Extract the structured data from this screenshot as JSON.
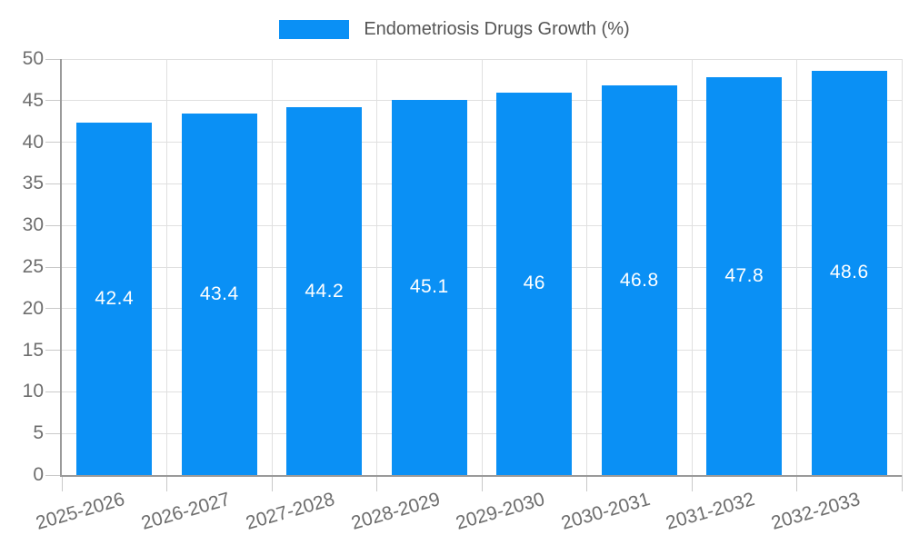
{
  "legend": {
    "label": "Endometriosis Drugs Growth (%)",
    "swatch_color": "#0a90f5"
  },
  "chart_data": {
    "type": "bar",
    "title": "Endometriosis Drugs Growth (%)",
    "categories": [
      "2025-2026",
      "2026-2027",
      "2027-2028",
      "2028-2029",
      "2029-2030",
      "2030-2031",
      "2031-2032",
      "2032-2033"
    ],
    "values": [
      42.4,
      43.4,
      44.2,
      45.1,
      46,
      46.8,
      47.8,
      48.6
    ],
    "data_labels": [
      "42.4",
      "43.4",
      "44.2",
      "45.1",
      "46",
      "46.8",
      "47.8",
      "48.6"
    ],
    "xlabel": "",
    "ylabel": "",
    "ylim": [
      0,
      50
    ],
    "ytick_step": 5,
    "ytick_labels": [
      "0",
      "5",
      "10",
      "15",
      "20",
      "25",
      "30",
      "35",
      "40",
      "45",
      "50"
    ],
    "grid": true,
    "legend_position": "top",
    "bar_color": "#0a90f5",
    "value_label_color": "#ffffff",
    "x_label_rotation_deg": -16
  },
  "colors": {
    "background": "#ffffff",
    "axis_line": "#9a9a9a",
    "gridline": "#e0e0e0",
    "tick_mark": "#c9c9c9",
    "tick_text": "#6e6e6e",
    "title_text": "#555555"
  }
}
